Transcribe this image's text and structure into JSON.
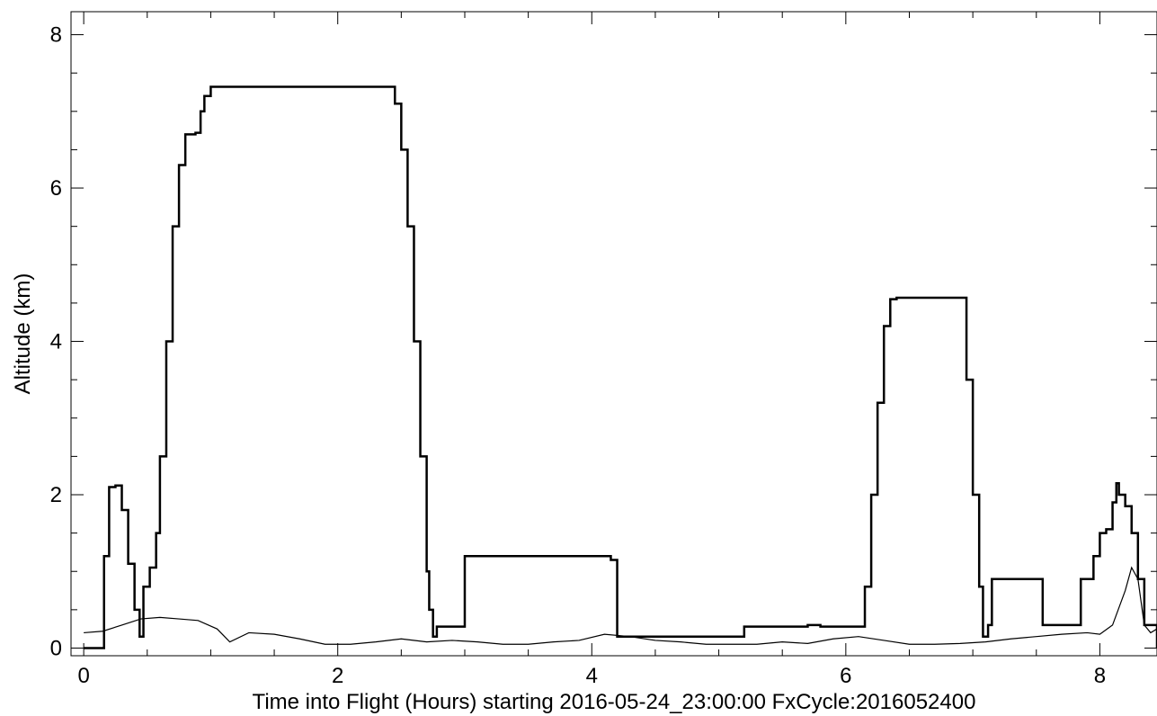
{
  "chart_data": {
    "type": "line",
    "title": "",
    "xlabel": "Time into Flight (Hours) starting 2016-05-24_23:00:00  FxCycle:2016052400",
    "ylabel": "Altitude (km)",
    "xlim": [
      -0.1,
      8.45
    ],
    "ylim": [
      -0.1,
      8.3
    ],
    "x_ticks": [
      0,
      2,
      4,
      6,
      8
    ],
    "x_tick_labels": [
      "0",
      "2",
      "4",
      "6",
      "8"
    ],
    "y_ticks": [
      0,
      2,
      4,
      6,
      8
    ],
    "y_tick_labels": [
      "0",
      "2",
      "4",
      "6",
      "8"
    ],
    "x_minor_step": 0.5,
    "y_minor_step": 0.5,
    "grid": false,
    "legend": "none",
    "series": [
      {
        "style": "stepped-thick",
        "color": "#000000",
        "x": [
          0.0,
          0.12,
          0.16,
          0.2,
          0.25,
          0.3,
          0.35,
          0.4,
          0.44,
          0.47,
          0.52,
          0.57,
          0.6,
          0.65,
          0.7,
          0.75,
          0.8,
          0.83,
          0.88,
          0.92,
          0.95,
          1.0,
          1.2,
          1.6,
          2.0,
          2.4,
          2.45,
          2.5,
          2.55,
          2.6,
          2.65,
          2.7,
          2.72,
          2.75,
          2.78,
          2.95,
          3.0,
          3.2,
          3.6,
          4.0,
          4.15,
          4.2,
          4.4,
          4.8,
          5.15,
          5.2,
          5.6,
          5.7,
          5.8,
          6.1,
          6.15,
          6.2,
          6.25,
          6.3,
          6.35,
          6.4,
          6.45,
          6.9,
          6.95,
          7.0,
          7.05,
          7.08,
          7.12,
          7.15,
          7.5,
          7.55,
          7.8,
          7.85,
          7.9,
          7.95,
          8.0,
          8.05,
          8.1,
          8.13,
          8.15,
          8.2,
          8.25,
          8.3,
          8.35,
          8.45
        ],
        "y": [
          0.0,
          0.0,
          1.2,
          2.1,
          2.12,
          1.8,
          1.1,
          0.5,
          0.15,
          0.8,
          1.05,
          1.5,
          2.5,
          4.0,
          5.5,
          6.3,
          6.7,
          6.7,
          6.72,
          7.0,
          7.2,
          7.32,
          7.32,
          7.32,
          7.32,
          7.32,
          7.1,
          6.5,
          5.5,
          4.0,
          2.5,
          1.0,
          0.5,
          0.15,
          0.28,
          0.28,
          1.2,
          1.2,
          1.2,
          1.2,
          1.15,
          0.15,
          0.15,
          0.15,
          0.15,
          0.28,
          0.28,
          0.3,
          0.28,
          0.28,
          0.8,
          2.0,
          3.2,
          4.2,
          4.55,
          4.57,
          4.57,
          4.57,
          3.5,
          2.0,
          0.8,
          0.15,
          0.3,
          0.9,
          0.9,
          0.3,
          0.3,
          0.9,
          0.9,
          1.2,
          1.5,
          1.55,
          1.9,
          2.15,
          2.0,
          1.85,
          1.5,
          0.9,
          0.3,
          0.0
        ]
      },
      {
        "style": "thin",
        "color": "#000000",
        "x": [
          0.0,
          0.15,
          0.3,
          0.45,
          0.6,
          0.75,
          0.9,
          1.05,
          1.15,
          1.3,
          1.5,
          1.7,
          1.9,
          2.1,
          2.3,
          2.5,
          2.7,
          2.9,
          3.1,
          3.3,
          3.5,
          3.7,
          3.9,
          4.1,
          4.3,
          4.5,
          4.7,
          4.9,
          5.1,
          5.3,
          5.5,
          5.7,
          5.9,
          6.1,
          6.3,
          6.5,
          6.7,
          6.9,
          7.1,
          7.3,
          7.5,
          7.7,
          7.9,
          8.0,
          8.1,
          8.2,
          8.25,
          8.3,
          8.35,
          8.4,
          8.45
        ],
        "y": [
          0.2,
          0.22,
          0.3,
          0.38,
          0.4,
          0.38,
          0.36,
          0.25,
          0.08,
          0.2,
          0.18,
          0.12,
          0.05,
          0.05,
          0.08,
          0.12,
          0.08,
          0.1,
          0.08,
          0.05,
          0.05,
          0.08,
          0.1,
          0.18,
          0.15,
          0.1,
          0.08,
          0.05,
          0.05,
          0.05,
          0.08,
          0.06,
          0.12,
          0.15,
          0.1,
          0.05,
          0.05,
          0.06,
          0.08,
          0.12,
          0.15,
          0.18,
          0.2,
          0.18,
          0.3,
          0.75,
          1.05,
          0.9,
          0.3,
          0.2,
          0.25
        ]
      }
    ]
  }
}
